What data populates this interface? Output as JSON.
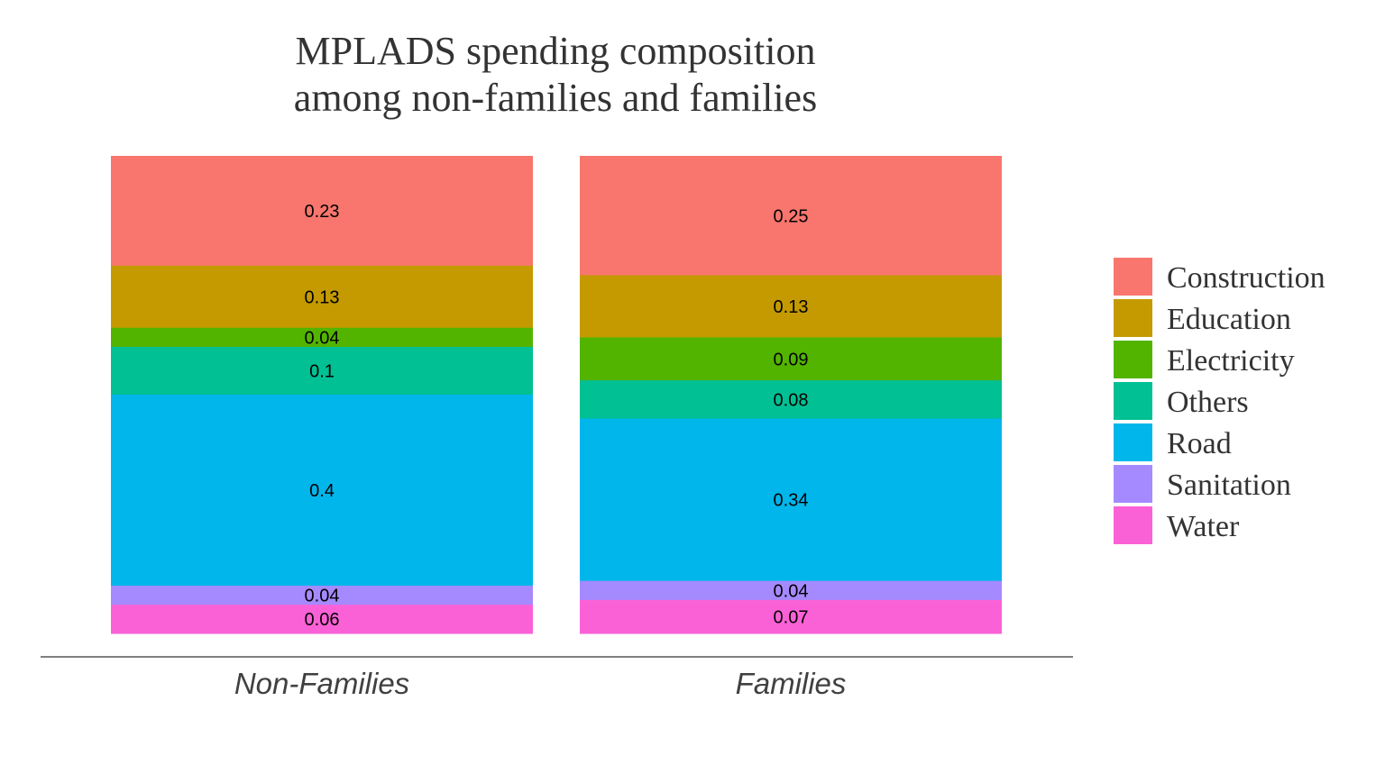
{
  "chart_data": {
    "type": "bar",
    "stacked": true,
    "title": "MPLADS spending composition\namong non-families and families",
    "categories": [
      "Non-Families",
      "Families"
    ],
    "series": [
      {
        "name": "Construction",
        "color": "#F8766D",
        "values": [
          0.23,
          0.25
        ]
      },
      {
        "name": "Education",
        "color": "#C49A00",
        "values": [
          0.13,
          0.13
        ]
      },
      {
        "name": "Electricity",
        "color": "#53B400",
        "values": [
          0.04,
          0.09
        ]
      },
      {
        "name": "Others",
        "color": "#00C094",
        "values": [
          0.1,
          0.08
        ]
      },
      {
        "name": "Road",
        "color": "#00B6EB",
        "values": [
          0.4,
          0.34
        ]
      },
      {
        "name": "Sanitation",
        "color": "#A58AFF",
        "values": [
          0.04,
          0.04
        ]
      },
      {
        "name": "Water",
        "color": "#FB61D7",
        "values": [
          0.06,
          0.07
        ]
      }
    ],
    "legend_position": "right",
    "grid": false
  }
}
